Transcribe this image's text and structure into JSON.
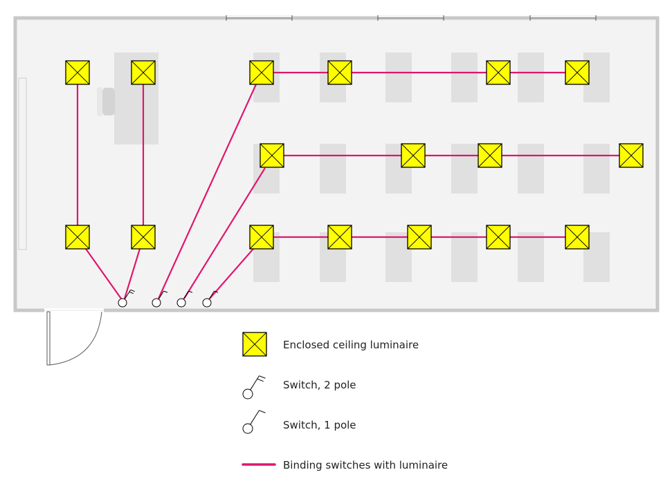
{
  "diagram": {
    "type": "electrical floor plan",
    "colors": {
      "wall": "#c8c8c8",
      "floor": "#f3f3f3",
      "furniture": "#e0e0e0",
      "luminaire_fill": "#ffff00",
      "wire": "#e0156e",
      "symbol_stroke": "#000000"
    },
    "counts": {
      "luminaires": 17,
      "switches_2_pole": 1,
      "switches_1_pole": 3
    }
  },
  "legend": {
    "items": [
      {
        "icon": "luminaire-icon",
        "label": "Enclosed ceiling luminaire"
      },
      {
        "icon": "switch-2-pole-icon",
        "label": "Switch, 2 pole"
      },
      {
        "icon": "switch-1-pole-icon",
        "label": "Switch, 1 pole"
      },
      {
        "icon": "wire-line-icon",
        "label": "Binding switches with luminaire"
      }
    ]
  }
}
